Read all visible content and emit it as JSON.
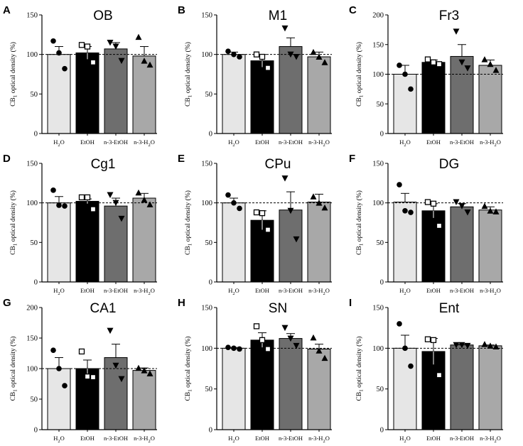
{
  "figure": {
    "ylabel_main": "CB",
    "ylabel_sub": "1",
    "ylabel_rest": " optical density (%)"
  },
  "chart_data": [
    {
      "type": "bar",
      "letter": "A",
      "title": "OB",
      "ylim": [
        0,
        150
      ],
      "ticks": [
        0,
        50,
        100,
        150
      ],
      "reference": 100,
      "categories": [
        "H2O",
        "EtOH",
        "n-3-EtOH",
        "n-3-H2O"
      ],
      "means": [
        100,
        102,
        107,
        98
      ],
      "sem": [
        10,
        8,
        8,
        12
      ],
      "points": [
        [
          117,
          102,
          82
        ],
        [
          112,
          110,
          90
        ],
        [
          115,
          110,
          92
        ],
        [
          122,
          92,
          87
        ]
      ],
      "colors": [
        "#e6e6e6",
        "#000000",
        "#6e6e6e",
        "#a8a8a8"
      ]
    },
    {
      "type": "bar",
      "letter": "B",
      "title": "M1",
      "ylim": [
        0,
        150
      ],
      "ticks": [
        0,
        50,
        100,
        150
      ],
      "reference": 100,
      "categories": [
        "H2O",
        "EtOH",
        "n-3-EtOH",
        "n-3-H2O"
      ],
      "means": [
        100,
        92,
        110,
        97
      ],
      "sem": [
        3,
        8,
        11,
        6
      ],
      "points": [
        [
          104,
          100,
          97
        ],
        [
          100,
          97,
          83
        ],
        [
          133,
          100,
          97
        ],
        [
          103,
          97,
          90
        ]
      ],
      "colors": [
        "#e6e6e6",
        "#000000",
        "#6e6e6e",
        "#a8a8a8"
      ]
    },
    {
      "type": "bar",
      "letter": "C",
      "title": "Fr3",
      "ylim": [
        0,
        200
      ],
      "ticks": [
        0,
        50,
        100,
        150,
        200
      ],
      "reference": 100,
      "categories": [
        "H2O",
        "EtOH",
        "n-3-EtOH",
        "n-3-H2O"
      ],
      "means": [
        100,
        120,
        130,
        115
      ],
      "sem": [
        15,
        4,
        20,
        9
      ],
      "points": [
        [
          115,
          100,
          75
        ],
        [
          125,
          120,
          117
        ],
        [
          172,
          120,
          110
        ],
        [
          125,
          117,
          107
        ]
      ],
      "colors": [
        "#e6e6e6",
        "#000000",
        "#6e6e6e",
        "#a8a8a8"
      ]
    },
    {
      "type": "bar",
      "letter": "D",
      "title": "Cg1",
      "ylim": [
        0,
        150
      ],
      "ticks": [
        0,
        50,
        100,
        150
      ],
      "reference": 100,
      "categories": [
        "H2O",
        "EtOH",
        "n-3-EtOH",
        "n-3-H2O"
      ],
      "means": [
        100,
        102,
        96,
        106
      ],
      "sem": [
        8,
        3,
        10,
        6
      ],
      "points": [
        [
          116,
          97,
          96
        ],
        [
          107,
          107,
          92
        ],
        [
          110,
          100,
          80
        ],
        [
          113,
          104,
          98
        ]
      ],
      "colors": [
        "#e6e6e6",
        "#000000",
        "#6e6e6e",
        "#a8a8a8"
      ]
    },
    {
      "type": "bar",
      "letter": "E",
      "title": "CPu",
      "ylim": [
        0,
        150
      ],
      "ticks": [
        0,
        50,
        100,
        150
      ],
      "reference": 100,
      "categories": [
        "H2O",
        "EtOH",
        "n-3-EtOH",
        "n-3-H2O"
      ],
      "means": [
        100,
        78,
        91,
        101
      ],
      "sem": [
        6,
        12,
        23,
        10
      ],
      "points": [
        [
          110,
          100,
          93
        ],
        [
          88,
          87,
          66
        ],
        [
          131,
          90,
          54
        ],
        [
          108,
          100,
          94
        ]
      ],
      "colors": [
        "#e6e6e6",
        "#000000",
        "#6e6e6e",
        "#a8a8a8"
      ]
    },
    {
      "type": "bar",
      "letter": "F",
      "title": "DG",
      "ylim": [
        0,
        150
      ],
      "ticks": [
        0,
        50,
        100,
        150
      ],
      "reference": 100,
      "categories": [
        "H2O",
        "EtOH",
        "n-3-EtOH",
        "n-3-H2O"
      ],
      "means": [
        101,
        90,
        95,
        91
      ],
      "sem": [
        11,
        9,
        4,
        4
      ],
      "points": [
        [
          123,
          90,
          88
        ],
        [
          101,
          99,
          71
        ],
        [
          101,
          96,
          88
        ],
        [
          96,
          90,
          89
        ]
      ],
      "colors": [
        "#e6e6e6",
        "#000000",
        "#6e6e6e",
        "#a8a8a8"
      ]
    },
    {
      "type": "bar",
      "letter": "G",
      "title": "CA1",
      "ylim": [
        0,
        200
      ],
      "ticks": [
        0,
        50,
        100,
        150,
        200
      ],
      "reference": 100,
      "categories": [
        "H2O",
        "EtOH",
        "n-3-EtOH",
        "n-3-H2O"
      ],
      "means": [
        100,
        100,
        118,
        97
      ],
      "sem": [
        18,
        14,
        22,
        4
      ],
      "points": [
        [
          130,
          100,
          72
        ],
        [
          128,
          87,
          86
        ],
        [
          162,
          105,
          83
        ],
        [
          101,
          97,
          92
        ]
      ],
      "colors": [
        "#e6e6e6",
        "#000000",
        "#6e6e6e",
        "#a8a8a8"
      ]
    },
    {
      "type": "bar",
      "letter": "H",
      "title": "SN",
      "ylim": [
        0,
        150
      ],
      "ticks": [
        0,
        50,
        100,
        150
      ],
      "reference": 100,
      "categories": [
        "H2O",
        "EtOH",
        "n-3-EtOH",
        "n-3-H2O"
      ],
      "means": [
        100,
        110,
        112,
        99
      ],
      "sem": [
        1,
        9,
        6,
        6
      ],
      "points": [
        [
          101,
          100,
          99
        ],
        [
          127,
          110,
          99
        ],
        [
          125,
          112,
          103
        ],
        [
          113,
          97,
          88
        ]
      ],
      "colors": [
        "#e6e6e6",
        "#000000",
        "#6e6e6e",
        "#a8a8a8"
      ]
    },
    {
      "type": "bar",
      "letter": "I",
      "title": "Ent",
      "ylim": [
        0,
        150
      ],
      "ticks": [
        0,
        50,
        100,
        150
      ],
      "reference": 100,
      "categories": [
        "H2O",
        "EtOH",
        "n-3-EtOH",
        "n-3-H2O"
      ],
      "means": [
        100,
        96,
        104,
        103
      ],
      "sem": [
        16,
        16,
        1,
        1
      ],
      "points": [
        [
          130,
          100,
          78
        ],
        [
          111,
          110,
          67
        ],
        [
          104,
          104,
          103
        ],
        [
          105,
          103,
          102
        ]
      ],
      "colors": [
        "#e6e6e6",
        "#000000",
        "#6e6e6e",
        "#a8a8a8"
      ]
    }
  ]
}
